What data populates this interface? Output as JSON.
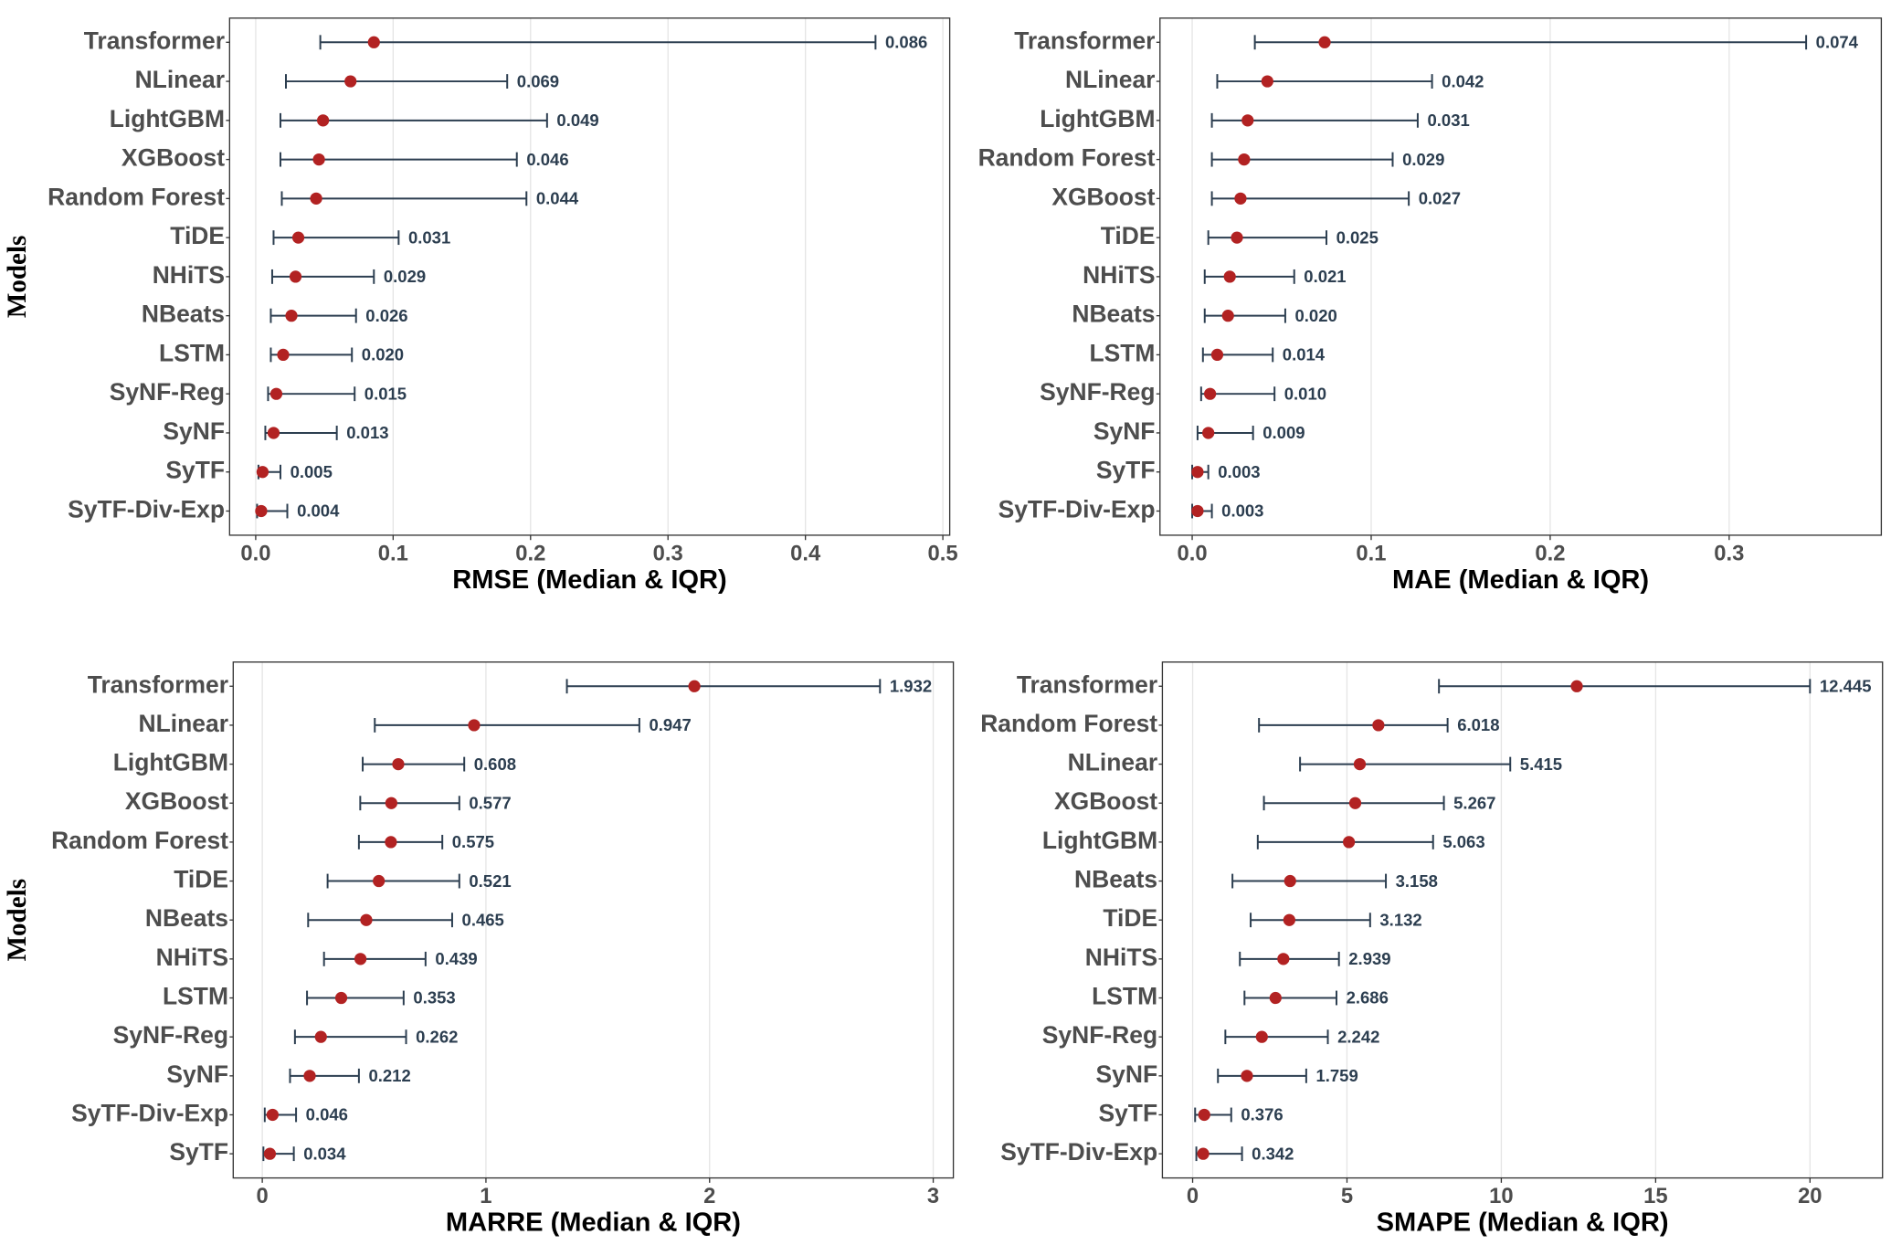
{
  "chart_data": [
    {
      "type": "dot_interval",
      "xlabel": "RMSE (Median & IQR)",
      "ylabel": "Models",
      "categories": [
        "Transformer",
        "NLinear",
        "LightGBM",
        "XGBoost",
        "Random Forest",
        "TiDE",
        "NHiTS",
        "NBeats",
        "LSTM",
        "SyNF-Reg",
        "SyNF",
        "SyTF",
        "SyTF-Div-Exp"
      ],
      "values": [
        0.086,
        0.069,
        0.049,
        0.046,
        0.044,
        0.031,
        0.029,
        0.026,
        0.02,
        0.015,
        0.013,
        0.005,
        0.004
      ],
      "value_labels": [
        "0.086",
        "0.069",
        "0.049",
        "0.046",
        "0.044",
        "0.031",
        "0.029",
        "0.026",
        "0.020",
        "0.015",
        "0.013",
        "0.005",
        "0.004"
      ],
      "lower": [
        0.047,
        0.022,
        0.018,
        0.018,
        0.019,
        0.013,
        0.012,
        0.011,
        0.011,
        0.009,
        0.007,
        0.002,
        0.001
      ],
      "upper": [
        0.451,
        0.183,
        0.212,
        0.19,
        0.197,
        0.104,
        0.086,
        0.073,
        0.07,
        0.072,
        0.059,
        0.018,
        0.023
      ],
      "point_color": "#b22222",
      "bar_color": "#2c3e50",
      "xlim": [
        -0.019,
        0.505
      ],
      "xticks": [
        {
          "value": 0,
          "label": "0.0"
        },
        0.1,
        0.2,
        0.3,
        0.4,
        0.5
      ],
      "grid": true
    },
    {
      "type": "dot_interval",
      "xlabel": "MAE (Median & IQR)",
      "categories": [
        "Transformer",
        "NLinear",
        "LightGBM",
        "Random Forest",
        "XGBoost",
        "TiDE",
        "NHiTS",
        "NBeats",
        "LSTM",
        "SyNF-Reg",
        "SyNF",
        "SyTF",
        "SyTF-Div-Exp"
      ],
      "values": [
        0.074,
        0.042,
        0.031,
        0.029,
        0.027,
        0.025,
        0.021,
        0.02,
        0.014,
        0.01,
        0.009,
        0.003,
        0.003
      ],
      "value_labels": [
        "0.074",
        "0.042",
        "0.031",
        "0.029",
        "0.027",
        "0.025",
        "0.021",
        "0.020",
        "0.014",
        "0.010",
        "0.009",
        "0.003",
        "0.003"
      ],
      "lower": [
        0.035,
        0.014,
        0.011,
        0.011,
        0.011,
        0.009,
        0.007,
        0.007,
        0.006,
        0.005,
        0.003,
        0.0,
        0.0
      ],
      "upper": [
        0.343,
        0.134,
        0.126,
        0.112,
        0.121,
        0.075,
        0.057,
        0.052,
        0.045,
        0.046,
        0.034,
        0.009,
        0.011
      ],
      "point_color": "#b22222",
      "bar_color": "#2c3e50",
      "xlim": [
        -0.018,
        0.385
      ],
      "xticks": [
        {
          "value": 0,
          "label": "0.0"
        },
        0.1,
        0.2,
        0.3
      ],
      "grid": true
    },
    {
      "type": "dot_interval",
      "xlabel": "MARRE (Median & IQR)",
      "ylabel": "Models",
      "categories": [
        "Transformer",
        "NLinear",
        "LightGBM",
        "XGBoost",
        "Random Forest",
        "TiDE",
        "NBeats",
        "NHiTS",
        "LSTM",
        "SyNF-Reg",
        "SyNF",
        "SyTF-Div-Exp",
        "SyTF"
      ],
      "values": [
        1.932,
        0.947,
        0.608,
        0.577,
        0.575,
        0.521,
        0.465,
        0.439,
        0.353,
        0.262,
        0.212,
        0.046,
        0.034
      ],
      "value_labels": [
        "1.932",
        "0.947",
        "0.608",
        "0.577",
        "0.575",
        "0.521",
        "0.465",
        "0.439",
        "0.353",
        "0.262",
        "0.212",
        "0.046",
        "0.034"
      ],
      "lower": [
        1.362,
        0.503,
        0.449,
        0.438,
        0.432,
        0.292,
        0.205,
        0.276,
        0.2,
        0.146,
        0.124,
        0.011,
        0.005
      ],
      "upper": [
        2.762,
        1.686,
        0.903,
        0.881,
        0.805,
        0.881,
        0.849,
        0.73,
        0.632,
        0.643,
        0.432,
        0.151,
        0.141
      ],
      "point_color": "#b22222",
      "bar_color": "#2c3e50",
      "xlim": [
        -0.13,
        3.09
      ],
      "xticks": [
        0,
        1,
        2,
        3
      ],
      "grid": true
    },
    {
      "type": "dot_interval",
      "xlabel": "SMAPE (Median & IQR)",
      "categories": [
        "Transformer",
        "Random Forest",
        "NLinear",
        "XGBoost",
        "LightGBM",
        "NBeats",
        "TiDE",
        "NHiTS",
        "LSTM",
        "SyNF-Reg",
        "SyNF",
        "SyTF",
        "SyTF-Div-Exp"
      ],
      "values": [
        12.445,
        6.018,
        5.415,
        5.267,
        5.063,
        3.158,
        3.132,
        2.939,
        2.686,
        2.242,
        1.759,
        0.376,
        0.342
      ],
      "value_labels": [
        "12.445",
        "6.018",
        "5.415",
        "5.267",
        "5.063",
        "3.158",
        "3.132",
        "2.939",
        "2.686",
        "2.242",
        "1.759",
        "0.376",
        "0.342"
      ],
      "lower": [
        7.98,
        2.15,
        3.48,
        2.31,
        2.11,
        1.29,
        1.88,
        1.53,
        1.68,
        1.06,
        0.82,
        0.08,
        0.12
      ],
      "upper": [
        20.0,
        8.26,
        10.29,
        8.14,
        7.79,
        6.26,
        5.75,
        4.74,
        4.66,
        4.38,
        3.68,
        1.25,
        1.6
      ],
      "point_color": "#b22222",
      "bar_color": "#2c3e50",
      "xlim": [
        -0.98,
        22.35
      ],
      "xticks": [
        0,
        5,
        10,
        15,
        20
      ],
      "grid": true
    }
  ]
}
